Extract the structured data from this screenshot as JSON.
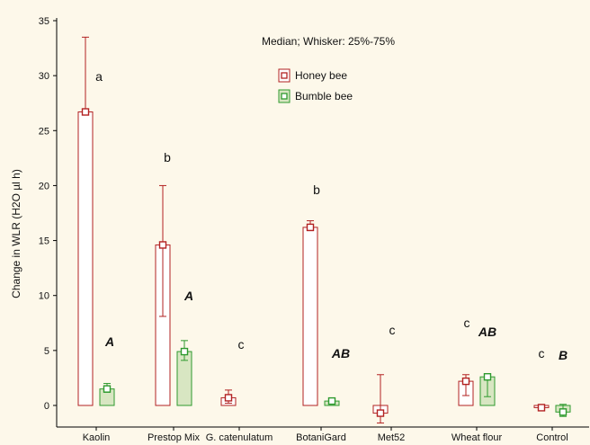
{
  "chart_data": {
    "type": "bar",
    "title": "",
    "annotation": "Median; Whisker: 25%-75%",
    "ylabel": "Change in WLR (H2O µl h)",
    "xlabel": "",
    "ylim": [
      -2,
      35
    ],
    "yticks": [
      0,
      5,
      10,
      15,
      20,
      25,
      30,
      35
    ],
    "grid": false,
    "legend_position": "top-center",
    "categories": [
      "Kaolin",
      "Prestop Mix",
      "G. catenulatum",
      "BotaniGard",
      "Met52",
      "Wheat flour",
      "Control"
    ],
    "series": [
      {
        "name": "Honey bee",
        "color": "#b22222",
        "fill": "#ffffff",
        "median": [
          26.7,
          14.6,
          0.7,
          16.2,
          -0.7,
          2.2,
          -0.2
        ],
        "q25": [
          26.7,
          8.1,
          0.2,
          15.9,
          -1.6,
          0.9,
          -0.4
        ],
        "q75": [
          33.5,
          20.0,
          1.4,
          16.8,
          2.8,
          2.8,
          0.0
        ],
        "letters": [
          "a",
          "b",
          "c",
          "b",
          "c",
          "c",
          "c"
        ]
      },
      {
        "name": "Bumble bee",
        "color": "#2e9a2e",
        "fill": "#d8e6c2",
        "median": [
          1.5,
          4.9,
          null,
          0.4,
          null,
          2.6,
          -0.6
        ],
        "q25": [
          1.2,
          4.1,
          null,
          0.3,
          null,
          0.8,
          -1.0
        ],
        "q75": [
          2.0,
          5.9,
          null,
          0.5,
          null,
          2.9,
          0.1
        ],
        "letters": [
          "A",
          "A",
          "",
          "AB",
          "",
          "AB",
          "B"
        ]
      }
    ]
  }
}
